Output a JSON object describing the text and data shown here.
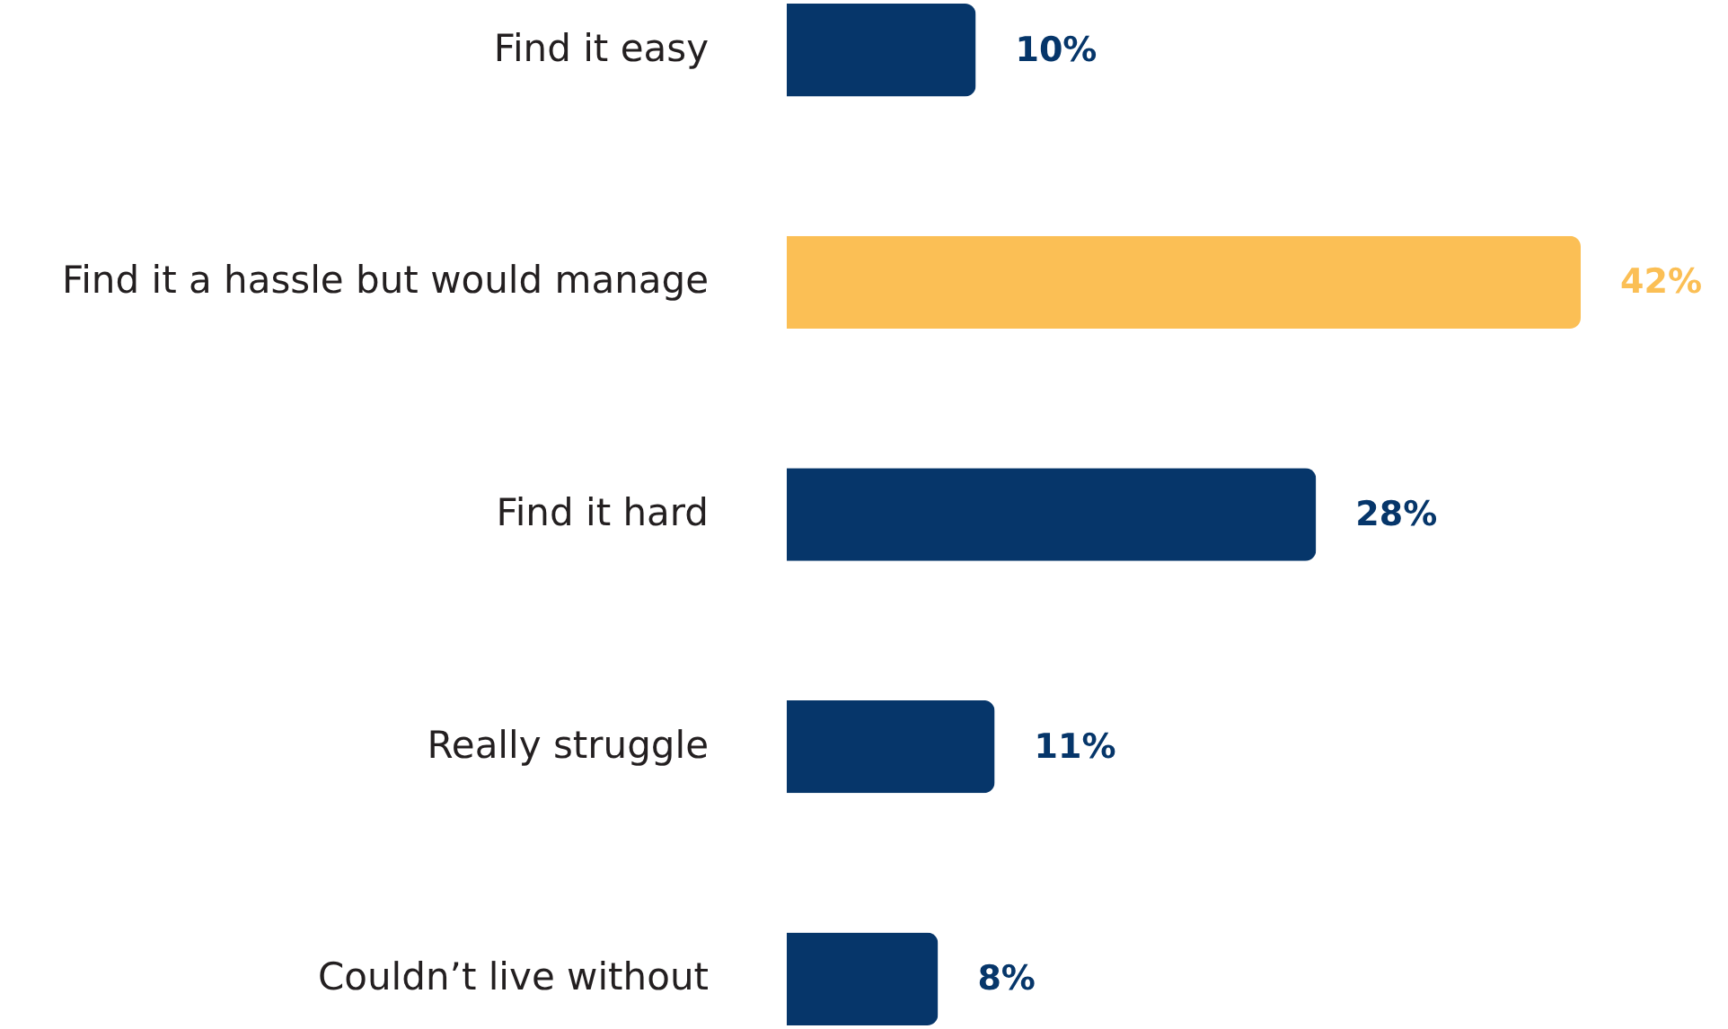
{
  "chart_data": {
    "type": "bar",
    "orientation": "horizontal",
    "categories": [
      "Find it easy",
      "Find it a hassle but would manage",
      "Find it hard",
      "Really struggle",
      "Couldn’t live without"
    ],
    "values": [
      10,
      42,
      28,
      11,
      8
    ],
    "colors": [
      "#06366a",
      "#fbbf55",
      "#06366a",
      "#06366a",
      "#06366a"
    ],
    "value_labels": [
      "10%",
      "42%",
      "28%",
      "11%",
      "8%"
    ],
    "tick_labels": "y"
  }
}
